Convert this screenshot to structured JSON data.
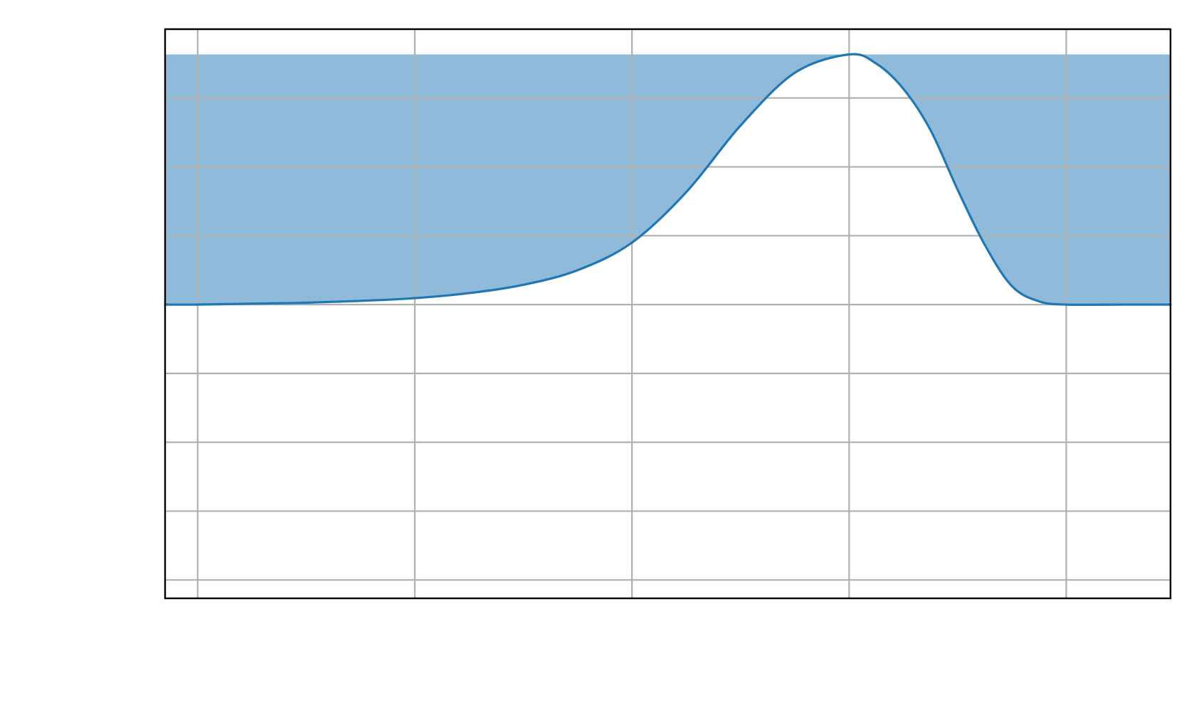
{
  "chart_data": {
    "type": "area",
    "title": "",
    "xlabel": "",
    "ylabel": "",
    "xlim": [
      -0.15,
      4.48
    ],
    "ylim": [
      -0.04,
      1.2
    ],
    "grid": true,
    "grid_color": "#b0b0b0",
    "xgrid": [
      0,
      1,
      2,
      3,
      4
    ],
    "ygrid": [
      0,
      0.15,
      0.3,
      0.45,
      0.6,
      0.75,
      0.9,
      1.05,
      1.2
    ],
    "fill_top": 1.145,
    "fill_color": "#8fbad9",
    "line_color": "#1f77b4",
    "series": [
      {
        "x": [
          -0.15,
          0,
          0.25,
          0.5,
          0.75,
          1.0,
          1.25,
          1.5,
          1.75,
          2.0,
          2.25,
          2.5,
          2.75,
          3.0,
          3.125,
          3.25,
          3.375,
          3.5,
          3.625,
          3.75,
          3.875,
          4.0,
          4.25,
          4.48
        ],
        "y": [
          0.6,
          0.6,
          0.602,
          0.604,
          0.608,
          0.614,
          0.625,
          0.643,
          0.675,
          0.735,
          0.845,
          0.99,
          1.105,
          1.145,
          1.125,
          1.07,
          0.98,
          0.85,
          0.73,
          0.64,
          0.607,
          0.6,
          0.6,
          0.6
        ]
      }
    ]
  }
}
